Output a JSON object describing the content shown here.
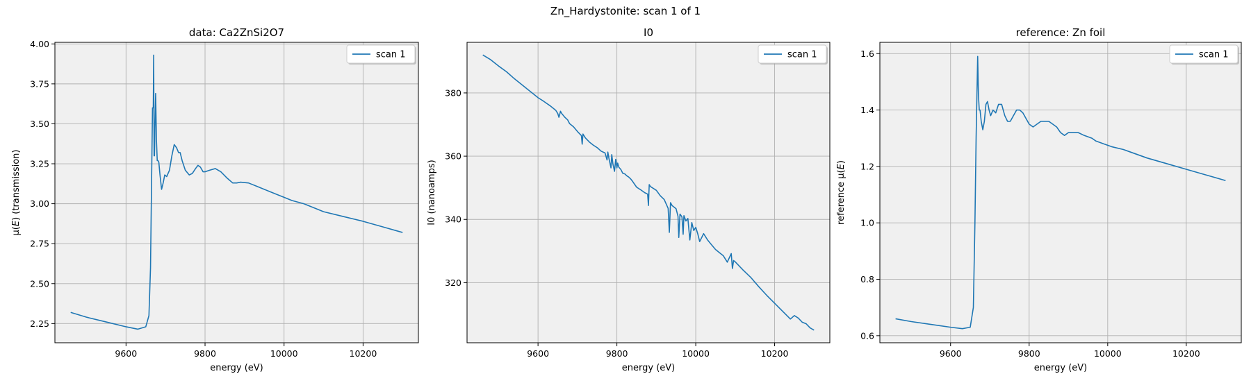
{
  "figure": {
    "suptitle": "Zn_Hardystonite: scan 1 of 1"
  },
  "colors": {
    "line": "#1f77b4",
    "panel_bg": "#f0f0f0",
    "grid": "#b0b0b0"
  },
  "chart_data": [
    {
      "type": "line",
      "title": "data: Ca2ZnSi2O7",
      "xlabel": "energy (eV)",
      "ylabel_parts": [
        "μ(",
        "E",
        ") (transmission)"
      ],
      "xlim": [
        9420,
        10340
      ],
      "ylim": [
        2.13,
        4.01
      ],
      "xticks": [
        9600,
        9800,
        10000,
        10200
      ],
      "xtick_labels": [
        "9600",
        "9800",
        "10000",
        "10200"
      ],
      "yticks": [
        2.25,
        2.5,
        2.75,
        3.0,
        3.25,
        3.5,
        3.75,
        4.0
      ],
      "ytick_labels": [
        "2.25",
        "2.50",
        "2.75",
        "3.00",
        "3.25",
        "3.50",
        "3.75",
        "4.00"
      ],
      "grid": true,
      "legend": "upper right",
      "series": [
        {
          "name": "scan 1",
          "x": [
            9460,
            9500,
            9550,
            9600,
            9630,
            9650,
            9658,
            9662,
            9665,
            9667,
            9669,
            9670,
            9671,
            9672,
            9673,
            9675,
            9677,
            9679,
            9681,
            9683,
            9686,
            9690,
            9694,
            9698,
            9703,
            9710,
            9716,
            9722,
            9728,
            9733,
            9737,
            9742,
            9750,
            9760,
            9768,
            9776,
            9782,
            9788,
            9795,
            9800,
            9812,
            9826,
            9840,
            9856,
            9870,
            9880,
            9890,
            9910,
            9930,
            9960,
            9990,
            10000,
            10020,
            10050,
            10080,
            10100,
            10150,
            10200,
            10250,
            10300
          ],
          "y": [
            2.32,
            2.29,
            2.26,
            2.23,
            2.215,
            2.23,
            2.3,
            2.6,
            3.2,
            3.6,
            3.6,
            3.93,
            3.3,
            3.3,
            3.45,
            3.69,
            3.4,
            3.27,
            3.27,
            3.26,
            3.18,
            3.09,
            3.13,
            3.18,
            3.17,
            3.21,
            3.3,
            3.37,
            3.35,
            3.32,
            3.32,
            3.27,
            3.21,
            3.18,
            3.19,
            3.22,
            3.24,
            3.23,
            3.2,
            3.2,
            3.21,
            3.22,
            3.2,
            3.16,
            3.13,
            3.13,
            3.135,
            3.13,
            3.11,
            3.08,
            3.05,
            3.04,
            3.02,
            3.0,
            2.97,
            2.95,
            2.92,
            2.89,
            2.855,
            2.82
          ]
        }
      ]
    },
    {
      "type": "line",
      "title": "I0",
      "xlabel": "energy (eV)",
      "ylabel_parts": [
        "I0 (nanoamps)"
      ],
      "xlim": [
        9420,
        10340
      ],
      "ylim": [
        301,
        396
      ],
      "xticks": [
        9600,
        9800,
        10000,
        10200
      ],
      "xtick_labels": [
        "9600",
        "9800",
        "10000",
        "10200"
      ],
      "yticks": [
        320,
        340,
        360,
        380
      ],
      "ytick_labels": [
        "320",
        "340",
        "360",
        "380"
      ],
      "grid": true,
      "legend": "upper right",
      "series": [
        {
          "name": "scan 1",
          "x": [
            9460,
            9480,
            9500,
            9520,
            9540,
            9560,
            9580,
            9600,
            9615,
            9630,
            9645,
            9650,
            9653,
            9657,
            9660,
            9668,
            9675,
            9680,
            9690,
            9700,
            9710,
            9712,
            9714,
            9720,
            9730,
            9740,
            9750,
            9760,
            9770,
            9775,
            9777,
            9780,
            9785,
            9787,
            9790,
            9794,
            9797,
            9800,
            9802,
            9805,
            9810,
            9815,
            9820,
            9825,
            9830,
            9835,
            9840,
            9850,
            9860,
            9870,
            9878,
            9880,
            9882,
            9885,
            9900,
            9910,
            9920,
            9930,
            9933,
            9936,
            9940,
            9950,
            9955,
            9957,
            9960,
            9965,
            9968,
            9970,
            9975,
            9980,
            9985,
            9990,
            9995,
            10000,
            10005,
            10010,
            10020,
            10030,
            10040,
            10050,
            10060,
            10070,
            10080,
            10090,
            10093,
            10096,
            10100,
            10120,
            10140,
            10160,
            10180,
            10200,
            10220,
            10240,
            10250,
            10260,
            10270,
            10280,
            10290,
            10300
          ],
          "y": [
            392,
            390.5,
            388.5,
            386.7,
            384.5,
            382.5,
            380.5,
            378.5,
            377.3,
            376,
            374.5,
            373.5,
            372.3,
            374.2,
            373.5,
            372.3,
            371.5,
            370.3,
            369.3,
            367.8,
            366.5,
            363.8,
            367,
            365.8,
            364.5,
            363.5,
            362.7,
            361.6,
            361,
            358.8,
            361.3,
            359.2,
            356.3,
            360.5,
            357.5,
            355.2,
            359,
            356.3,
            357.8,
            356.5,
            355.8,
            354.6,
            354.4,
            353.8,
            353.4,
            352.8,
            352,
            350.2,
            349.4,
            348.5,
            348,
            344.4,
            351,
            350.4,
            349.2,
            347.5,
            346.3,
            343.5,
            335.9,
            345.3,
            344.4,
            343.4,
            341,
            334.3,
            341.7,
            340.8,
            335.3,
            341.2,
            339.5,
            340.3,
            333.5,
            339,
            336.5,
            337.5,
            335.5,
            333,
            335.5,
            333.5,
            332,
            330.5,
            329.5,
            328.5,
            326.5,
            329.2,
            324.5,
            327,
            326.6,
            324,
            321.6,
            318.7,
            316,
            313.5,
            311,
            308.5,
            309.6,
            308.8,
            307.5,
            307,
            305.7,
            305
          ]
        }
      ]
    },
    {
      "type": "line",
      "title": "reference: Zn foil",
      "xlabel": "energy (eV)",
      "ylabel_parts": [
        "reference μ(",
        "E",
        ")"
      ],
      "xlim": [
        9420,
        10340
      ],
      "ylim": [
        0.575,
        1.64
      ],
      "xticks": [
        9600,
        9800,
        10000,
        10200
      ],
      "xtick_labels": [
        "9600",
        "9800",
        "10000",
        "10200"
      ],
      "yticks": [
        0.6,
        0.8,
        1.0,
        1.2,
        1.4,
        1.6
      ],
      "ytick_labels": [
        "0.6",
        "0.8",
        "1.0",
        "1.2",
        "1.4",
        "1.6"
      ],
      "grid": true,
      "legend": "upper right",
      "series": [
        {
          "name": "scan 1",
          "x": [
            9460,
            9500,
            9550,
            9600,
            9630,
            9650,
            9658,
            9662,
            9665,
            9667,
            9669,
            9671,
            9673,
            9675,
            9678,
            9682,
            9686,
            9690,
            9694,
            9698,
            9702,
            9708,
            9715,
            9722,
            9730,
            9738,
            9745,
            9752,
            9760,
            9768,
            9776,
            9784,
            9792,
            9800,
            9810,
            9820,
            9830,
            9840,
            9850,
            9860,
            9870,
            9880,
            9890,
            9900,
            9910,
            9925,
            9940,
            9960,
            9970,
            9990,
            10010,
            10040,
            10060,
            10100,
            10150,
            10200,
            10250,
            10300
          ],
          "y": [
            0.66,
            0.65,
            0.64,
            0.63,
            0.625,
            0.63,
            0.7,
            1.0,
            1.3,
            1.45,
            1.59,
            1.45,
            1.4,
            1.4,
            1.36,
            1.33,
            1.36,
            1.42,
            1.43,
            1.4,
            1.38,
            1.4,
            1.39,
            1.42,
            1.42,
            1.38,
            1.36,
            1.36,
            1.38,
            1.4,
            1.4,
            1.39,
            1.37,
            1.35,
            1.34,
            1.35,
            1.36,
            1.36,
            1.36,
            1.35,
            1.34,
            1.32,
            1.31,
            1.32,
            1.32,
            1.32,
            1.31,
            1.3,
            1.29,
            1.28,
            1.27,
            1.26,
            1.25,
            1.23,
            1.21,
            1.19,
            1.17,
            1.15
          ]
        }
      ]
    }
  ]
}
